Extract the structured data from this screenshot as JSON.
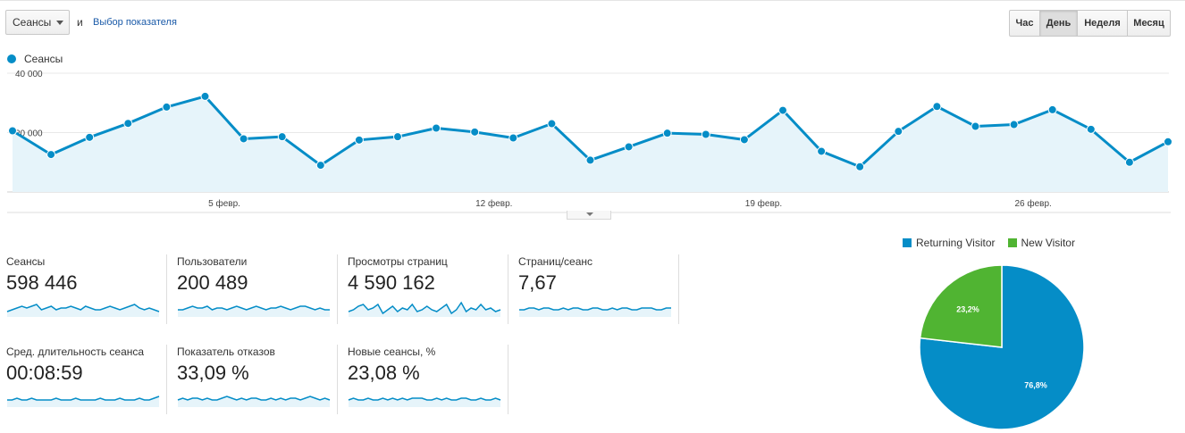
{
  "controls": {
    "metric": "Сеансы",
    "conjunction": "и",
    "metric_link": "Выбор показателя",
    "periods": [
      "Час",
      "День",
      "Неделя",
      "Месяц"
    ],
    "active_period": "День"
  },
  "chart_data": [
    {
      "type": "area",
      "series": [
        {
          "name": "Сеансы",
          "color": "#058dc7",
          "values": [
            20600,
            12600,
            18400,
            23100,
            28600,
            32200,
            17900,
            18600,
            9000,
            17500,
            18600,
            21500,
            20200,
            18200,
            23000,
            10700,
            15200,
            19800,
            19400,
            17600,
            27500,
            13700,
            8500,
            20400,
            28800,
            22100,
            22700,
            27700,
            21100,
            10000,
            16900
          ]
        }
      ],
      "ylim": [
        0,
        40000
      ],
      "yticks": [
        {
          "value": 20000,
          "label": "20 000"
        },
        {
          "value": 40000,
          "label": "40 000"
        }
      ],
      "xticks": [
        {
          "index": 5.5,
          "label": "5 февр."
        },
        {
          "index": 12.5,
          "label": "12 февр."
        },
        {
          "index": 19.5,
          "label": "19 февр."
        },
        {
          "index": 26.5,
          "label": "26 февр."
        }
      ],
      "grid": true
    },
    {
      "type": "pie",
      "slices": [
        {
          "name": "Returning Visitor",
          "value": 76.8,
          "label": "76,8%",
          "color": "#058dc7"
        },
        {
          "name": "New Visitor",
          "value": 23.2,
          "label": "23,2%",
          "color": "#50b432"
        }
      ],
      "legend": "top"
    }
  ],
  "metrics": [
    {
      "label": "Сеансы",
      "value": "598 446",
      "spark": [
        5,
        6,
        7,
        8,
        7,
        8,
        9,
        6,
        7,
        8,
        6,
        7,
        7,
        8,
        7,
        6,
        8,
        7,
        6,
        6,
        7,
        8,
        7,
        6,
        7,
        8,
        9,
        7,
        6,
        7,
        6,
        5
      ]
    },
    {
      "label": "Пользователи",
      "value": "200 489",
      "spark": [
        6,
        6,
        7,
        8,
        7,
        7,
        8,
        6,
        7,
        7,
        6,
        7,
        8,
        7,
        6,
        7,
        8,
        7,
        6,
        7,
        7,
        8,
        7,
        6,
        7,
        8,
        8,
        7,
        6,
        7,
        6,
        6
      ]
    },
    {
      "label": "Просмотры страниц",
      "value": "4 590 162",
      "spark": [
        5,
        6,
        8,
        9,
        6,
        7,
        9,
        4,
        6,
        8,
        5,
        7,
        6,
        9,
        5,
        6,
        8,
        6,
        5,
        7,
        9,
        4,
        6,
        10,
        5,
        7,
        6,
        9,
        6,
        7,
        5,
        6
      ]
    },
    {
      "label": "Страниц/сеанс",
      "value": "7,67",
      "spark": [
        6,
        6,
        7,
        7,
        6,
        7,
        7,
        6,
        6,
        7,
        6,
        7,
        7,
        6,
        6,
        7,
        7,
        6,
        6,
        7,
        6,
        7,
        7,
        6,
        6,
        7,
        7,
        7,
        6,
        6,
        7,
        7
      ]
    },
    {
      "label": "Сред. длительность сеанса",
      "value": "00:08:59",
      "spark": [
        6,
        6,
        7,
        6,
        6,
        7,
        6,
        6,
        6,
        6,
        7,
        6,
        6,
        6,
        7,
        6,
        6,
        6,
        6,
        7,
        6,
        6,
        6,
        7,
        6,
        6,
        6,
        7,
        6,
        6,
        7,
        8
      ]
    },
    {
      "label": "Показатель отказов",
      "value": "33,09 %",
      "spark": [
        6,
        7,
        6,
        7,
        7,
        6,
        7,
        6,
        6,
        7,
        8,
        7,
        6,
        7,
        6,
        7,
        7,
        6,
        6,
        7,
        6,
        7,
        6,
        7,
        7,
        6,
        7,
        8,
        7,
        6,
        7,
        6
      ]
    },
    {
      "label": "Новые сеансы, %",
      "value": "23,08 %",
      "spark": [
        6,
        7,
        6,
        6,
        7,
        6,
        6,
        7,
        6,
        7,
        6,
        7,
        6,
        7,
        7,
        7,
        6,
        6,
        7,
        6,
        7,
        6,
        6,
        7,
        7,
        6,
        6,
        7,
        6,
        6,
        7,
        6
      ]
    }
  ]
}
